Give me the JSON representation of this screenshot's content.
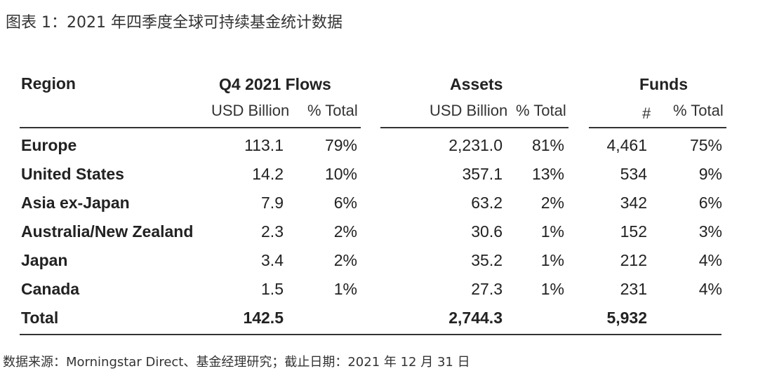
{
  "title": "图表 1：2021 年四季度全球可持续基金统计数据",
  "table": {
    "region_header": "Region",
    "groups": [
      {
        "label": "Q4 2021 Flows",
        "sub": [
          "USD Billion",
          "% Total"
        ]
      },
      {
        "label": "Assets",
        "sub": [
          "USD Billion",
          "% Total"
        ]
      },
      {
        "label": "Funds",
        "sub": [
          "#",
          "% Total"
        ]
      }
    ],
    "rows": [
      {
        "region": "Europe",
        "cells": [
          "113.1",
          "79%",
          "2,231.0",
          "81%",
          "4,461",
          "75%"
        ]
      },
      {
        "region": "United States",
        "cells": [
          "14.2",
          "10%",
          "357.1",
          "13%",
          "534",
          "9%"
        ]
      },
      {
        "region": "Asia ex-Japan",
        "cells": [
          "7.9",
          "6%",
          "63.2",
          "2%",
          "342",
          "6%"
        ]
      },
      {
        "region": "Australia/New Zealand",
        "cells": [
          "2.3",
          "2%",
          "30.6",
          "1%",
          "152",
          "3%"
        ]
      },
      {
        "region": "Japan",
        "cells": [
          "3.4",
          "2%",
          "35.2",
          "1%",
          "212",
          "4%"
        ]
      },
      {
        "region": "Canada",
        "cells": [
          "1.5",
          "1%",
          "27.3",
          "1%",
          "231",
          "4%"
        ]
      }
    ],
    "total": {
      "region": "Total",
      "cells": [
        "142.5",
        "",
        "2,744.3",
        "",
        "5,932",
        ""
      ]
    }
  },
  "source": "数据来源：Morningstar Direct、基金经理研究；截止日期：2021 年 12 月 31 日"
}
